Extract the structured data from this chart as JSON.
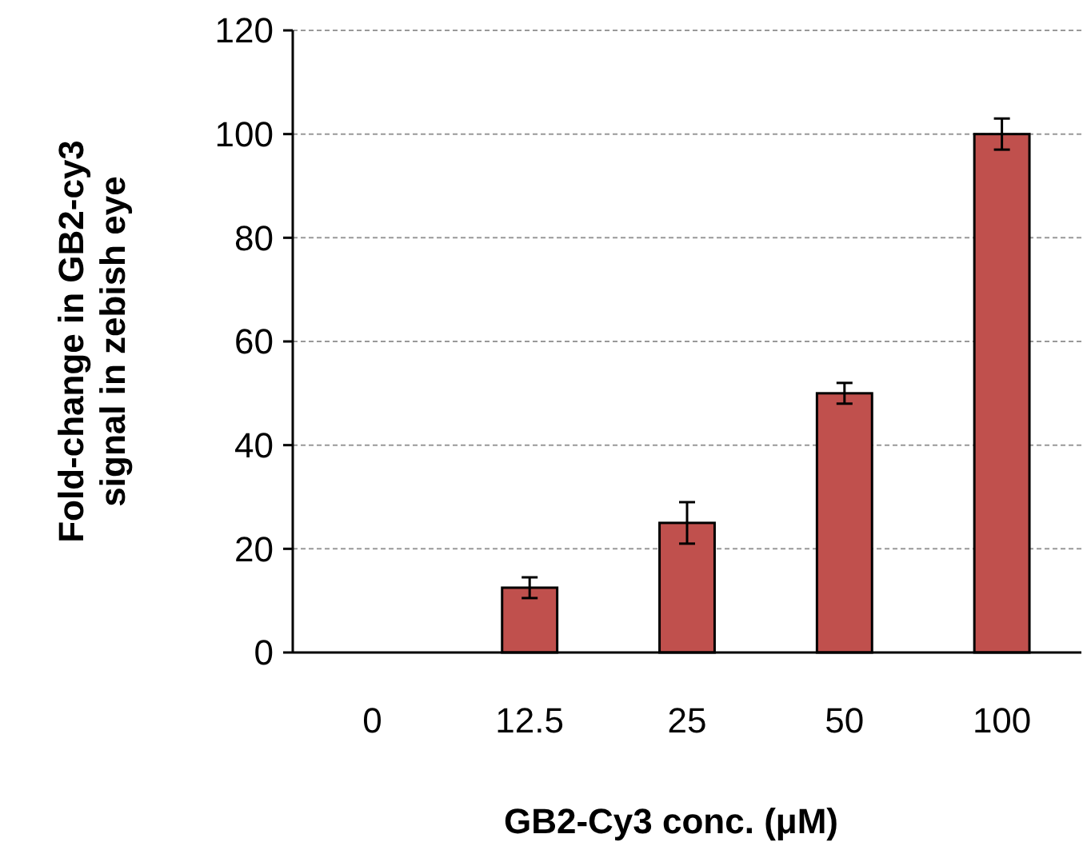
{
  "chart_data": {
    "type": "bar",
    "xlabel": "GB2-Cy3 conc. (μM)",
    "ylabel": "Fold-change in GB2-cy3\nsignal in zebish eye",
    "categories": [
      "0",
      "12.5",
      "25",
      "50",
      "100"
    ],
    "values": [
      0,
      12.5,
      25,
      50,
      100
    ],
    "errors": [
      null,
      2,
      4,
      2,
      3
    ],
    "color": "#c0504d",
    "ylim": [
      0,
      120
    ],
    "yticks": [
      0,
      20,
      40,
      60,
      80,
      100,
      120
    ],
    "grid": "y"
  }
}
